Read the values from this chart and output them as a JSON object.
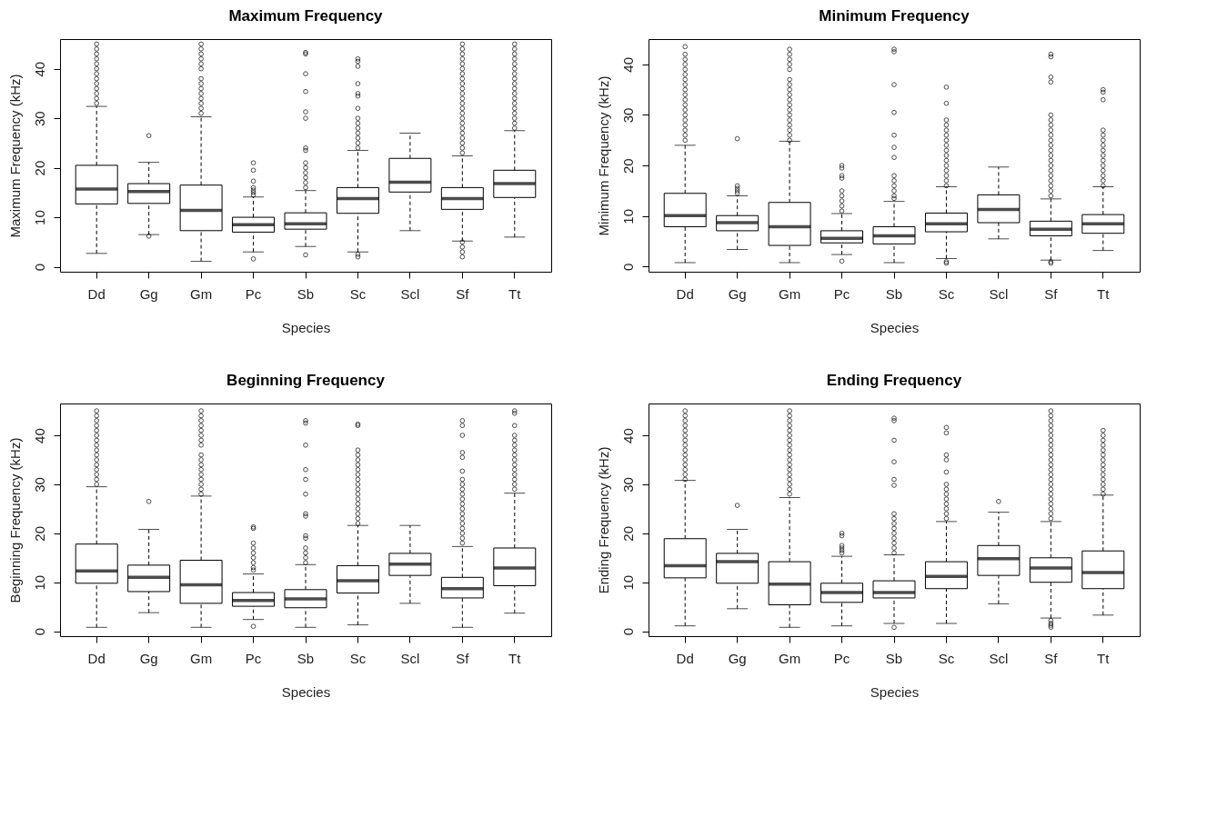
{
  "chart_data": [
    {
      "type": "box",
      "title": "Maximum Frequency",
      "xlabel": "Species",
      "ylabel": "Maximum Frequency (kHz)",
      "categories": [
        "Dd",
        "Gg",
        "Gm",
        "Pc",
        "Sb",
        "Sc",
        "Scl",
        "Sf",
        "Tt"
      ],
      "ylim": [
        -1,
        46
      ],
      "yticks": [
        0,
        10,
        20,
        30,
        40
      ],
      "boxes": [
        {
          "low": 2.7,
          "q1": 12.7,
          "median": 15.7,
          "q3": 20.5,
          "high": 32.4,
          "outliers": [
            33,
            34,
            35,
            36,
            37,
            38,
            39,
            40,
            41,
            42,
            43,
            44,
            45
          ]
        },
        {
          "low": 6.5,
          "q1": 12.8,
          "median": 15.2,
          "q3": 16.8,
          "high": 21.1,
          "outliers": [
            6.2,
            26.5
          ]
        },
        {
          "low": 1.1,
          "q1": 7.3,
          "median": 11.4,
          "q3": 16.5,
          "high": 30.3,
          "outliers": [
            31,
            32,
            33,
            34,
            35,
            36,
            37,
            38,
            40,
            41,
            42,
            43,
            44,
            45
          ]
        },
        {
          "low": 3,
          "q1": 7,
          "median": 8.5,
          "q3": 10,
          "high": 14.1,
          "outliers": [
            1.6,
            14.5,
            15,
            15.5,
            16,
            17.3,
            19.5,
            21
          ]
        },
        {
          "low": 4.1,
          "q1": 7.6,
          "median": 8.7,
          "q3": 10.9,
          "high": 15.4,
          "outliers": [
            2.4,
            16,
            17,
            18,
            19,
            20,
            21,
            23.5,
            24,
            30,
            31.3,
            35.4,
            39,
            43,
            43.3
          ]
        },
        {
          "low": 3,
          "q1": 10.8,
          "median": 13.8,
          "q3": 16,
          "high": 23.5,
          "outliers": [
            2,
            2.5,
            24,
            25,
            26,
            27,
            28,
            29,
            30,
            32,
            34.5,
            35,
            37,
            40.5,
            41.5,
            42
          ]
        },
        {
          "low": 7.3,
          "q1": 15.1,
          "median": 17.1,
          "q3": 21.9,
          "high": 27
        },
        {
          "low": 5.2,
          "q1": 11.6,
          "median": 13.8,
          "q3": 16,
          "high": 22.4,
          "outliers": [
            2,
            3,
            4,
            5,
            23,
            24,
            25,
            26,
            27,
            28,
            29,
            30,
            31,
            32,
            33,
            34,
            35,
            36,
            37,
            38,
            39,
            40,
            41,
            42,
            43,
            44,
            45
          ]
        },
        {
          "low": 6,
          "q1": 14,
          "median": 16.8,
          "q3": 19.5,
          "high": 27.5,
          "outliers": [
            28,
            29,
            30,
            31,
            32,
            33,
            34,
            35,
            36,
            37,
            38,
            39,
            40,
            41,
            42,
            43,
            44,
            45
          ]
        }
      ]
    },
    {
      "type": "box",
      "title": "Minimum Frequency",
      "xlabel": "Species",
      "ylabel": "Minimum Frequency (kHz)",
      "categories": [
        "Dd",
        "Gg",
        "Gm",
        "Pc",
        "Sb",
        "Sc",
        "Scl",
        "Sf",
        "Tt"
      ],
      "ylim": [
        -1,
        45
      ],
      "yticks": [
        0,
        10,
        20,
        30,
        40
      ],
      "boxes": [
        {
          "low": 0.8,
          "q1": 7.9,
          "median": 10.1,
          "q3": 14.5,
          "high": 24,
          "outliers": [
            25,
            26,
            27,
            28,
            29,
            30,
            31,
            32,
            33,
            34,
            35,
            36,
            37,
            38,
            39,
            40,
            41,
            42,
            43.5
          ]
        },
        {
          "low": 3.4,
          "q1": 7.1,
          "median": 8.7,
          "q3": 10.1,
          "high": 14,
          "outliers": [
            14.5,
            15,
            15.5,
            16,
            25.3
          ]
        },
        {
          "low": 0.8,
          "q1": 4.2,
          "median": 7.9,
          "q3": 12.7,
          "high": 24.8,
          "outliers": [
            25,
            26,
            27,
            28,
            29,
            30,
            31,
            32,
            33,
            34,
            35,
            36,
            37,
            39,
            40,
            41,
            42,
            43
          ]
        },
        {
          "low": 2.4,
          "q1": 4.7,
          "median": 5.6,
          "q3": 7.1,
          "high": 10.5,
          "outliers": [
            1.1,
            11,
            12,
            13,
            14,
            15,
            17.5,
            18,
            19.5,
            20
          ]
        },
        {
          "low": 0.8,
          "q1": 4.5,
          "median": 6.1,
          "q3": 7.9,
          "high": 12.9,
          "outliers": [
            13.5,
            14,
            15,
            16,
            17,
            18,
            21.6,
            23.6,
            26,
            30.5,
            36,
            42.5,
            43
          ]
        },
        {
          "low": 1.6,
          "q1": 6.9,
          "median": 8.5,
          "q3": 10.6,
          "high": 15.8,
          "outliers": [
            0.7,
            1,
            16,
            17,
            18,
            19,
            20,
            21,
            22,
            23,
            24,
            25,
            26,
            27,
            28,
            29,
            32.3,
            35.5
          ]
        },
        {
          "low": 5.5,
          "q1": 8.7,
          "median": 11.3,
          "q3": 14.2,
          "high": 19.7
        },
        {
          "low": 1.3,
          "q1": 6.1,
          "median": 7.4,
          "q3": 9,
          "high": 13.4,
          "outliers": [
            0.7,
            1,
            14,
            15,
            16,
            17,
            18,
            19,
            20,
            21,
            22,
            23,
            24,
            25,
            26,
            27,
            28,
            29,
            30,
            36.5,
            37.5,
            41.5,
            42
          ]
        },
        {
          "low": 3.2,
          "q1": 6.6,
          "median": 8.5,
          "q3": 10.3,
          "high": 15.8,
          "outliers": [
            16,
            17,
            18,
            19,
            20,
            21,
            22,
            23,
            24,
            25,
            26,
            27,
            33,
            34.5,
            35
          ]
        }
      ]
    },
    {
      "type": "box",
      "title": "Beginning Frequency",
      "xlabel": "Species",
      "ylabel": "Beginning Frequency (kHz)",
      "categories": [
        "Dd",
        "Gg",
        "Gm",
        "Pc",
        "Sb",
        "Sc",
        "Scl",
        "Sf",
        "Tt"
      ],
      "ylim": [
        -1,
        46.5
      ],
      "yticks": [
        0,
        10,
        20,
        30,
        40
      ],
      "boxes": [
        {
          "low": 0.8,
          "q1": 9.8,
          "median": 12.3,
          "q3": 17.8,
          "high": 29.5,
          "outliers": [
            30,
            31,
            32,
            33,
            34,
            35,
            36,
            37,
            38,
            39,
            40,
            41,
            42,
            43,
            44,
            45
          ]
        },
        {
          "low": 3.8,
          "q1": 8.1,
          "median": 11,
          "q3": 13.5,
          "high": 20.8,
          "outliers": [
            26.5
          ]
        },
        {
          "low": 0.8,
          "q1": 5.7,
          "median": 9.5,
          "q3": 14.5,
          "high": 27.6,
          "outliers": [
            28,
            29,
            30,
            31,
            32,
            33,
            34,
            35,
            36,
            38,
            39,
            40,
            41,
            42,
            43,
            44,
            45
          ]
        },
        {
          "low": 2.4,
          "q1": 5.1,
          "median": 6.3,
          "q3": 7.9,
          "high": 11.7,
          "outliers": [
            1,
            12.5,
            13,
            14,
            15,
            16,
            17,
            18,
            21,
            21.3
          ]
        },
        {
          "low": 0.8,
          "q1": 4.8,
          "median": 6.6,
          "q3": 8.5,
          "high": 13.6,
          "outliers": [
            14,
            15,
            16,
            17,
            19,
            19.5,
            23.5,
            24,
            28,
            31,
            33,
            38,
            42.5,
            43
          ]
        },
        {
          "low": 1.3,
          "q1": 7.8,
          "median": 10.3,
          "q3": 13.4,
          "high": 21.6,
          "outliers": [
            22,
            23,
            24,
            25,
            26,
            27,
            28,
            29,
            30,
            31,
            32,
            33,
            34,
            35,
            36,
            37,
            42,
            42.3
          ]
        },
        {
          "low": 5.7,
          "q1": 11.4,
          "median": 13.7,
          "q3": 15.9,
          "high": 21.6
        },
        {
          "low": 0.8,
          "q1": 6.8,
          "median": 8.7,
          "q3": 11,
          "high": 17.3,
          "outliers": [
            18,
            19,
            20,
            21,
            22,
            23,
            24,
            25,
            26,
            27,
            28,
            29,
            30,
            31,
            32.7,
            35.5,
            36.5,
            40,
            42,
            43
          ]
        },
        {
          "low": 3.7,
          "q1": 9.3,
          "median": 12.9,
          "q3": 17,
          "high": 28.2,
          "outliers": [
            29,
            30,
            31,
            32,
            33,
            34,
            35,
            36,
            37,
            38,
            39,
            40,
            42,
            44.5,
            45
          ]
        }
      ]
    },
    {
      "type": "box",
      "title": "Ending Frequency",
      "xlabel": "Species",
      "ylabel": "Ending Frequency (kHz)",
      "categories": [
        "Dd",
        "Gg",
        "Gm",
        "Pc",
        "Sb",
        "Sc",
        "Scl",
        "Sf",
        "Tt"
      ],
      "ylim": [
        -1,
        46.5
      ],
      "yticks": [
        0,
        10,
        20,
        30,
        40
      ],
      "boxes": [
        {
          "low": 1.1,
          "q1": 10.9,
          "median": 13.4,
          "q3": 18.9,
          "high": 30.8,
          "outliers": [
            31,
            32,
            33,
            34,
            35,
            36,
            37,
            38,
            39,
            40,
            41,
            42,
            43,
            44,
            45
          ]
        },
        {
          "low": 4.6,
          "q1": 9.8,
          "median": 14.2,
          "q3": 15.9,
          "high": 20.8,
          "outliers": [
            25.7
          ]
        },
        {
          "low": 0.8,
          "q1": 5.4,
          "median": 9.6,
          "q3": 14.2,
          "high": 27.3,
          "outliers": [
            28,
            29,
            30,
            31,
            32,
            33,
            34,
            35,
            36,
            37,
            38,
            39,
            40,
            41,
            42,
            43,
            44,
            45
          ]
        },
        {
          "low": 1.1,
          "q1": 5.9,
          "median": 7.9,
          "q3": 9.8,
          "high": 15.3,
          "outliers": [
            16,
            16.5,
            17,
            17.5,
            19.5,
            20
          ]
        },
        {
          "low": 1.6,
          "q1": 6.8,
          "median": 7.9,
          "q3": 10.3,
          "high": 15.6,
          "outliers": [
            0.8,
            16,
            17,
            18,
            19,
            20,
            21,
            22,
            23,
            24,
            29.8,
            31,
            34.6,
            39,
            43,
            43.5
          ]
        },
        {
          "low": 1.6,
          "q1": 8.7,
          "median": 11.2,
          "q3": 14.2,
          "high": 22.4,
          "outliers": [
            23,
            24,
            25,
            26,
            27,
            28,
            29,
            30,
            32.5,
            35,
            36,
            40.5,
            41.6
          ]
        },
        {
          "low": 5.6,
          "q1": 11.4,
          "median": 14.8,
          "q3": 17.5,
          "high": 24.3,
          "outliers": [
            26.5
          ]
        },
        {
          "low": 2.7,
          "q1": 10,
          "median": 12.9,
          "q3": 15,
          "high": 22.4,
          "outliers": [
            0.8,
            1.2,
            1.6,
            2.2,
            23,
            24,
            25,
            26,
            27,
            28,
            29,
            30,
            31,
            32,
            33,
            34,
            35,
            36,
            37,
            38,
            39,
            40,
            41,
            42,
            43,
            44,
            45
          ]
        },
        {
          "low": 3.3,
          "q1": 8.7,
          "median": 12,
          "q3": 16.4,
          "high": 27.8,
          "outliers": [
            28,
            29,
            30,
            31,
            32,
            33,
            34,
            35,
            36,
            37,
            38,
            39,
            40,
            41
          ]
        }
      ]
    }
  ]
}
